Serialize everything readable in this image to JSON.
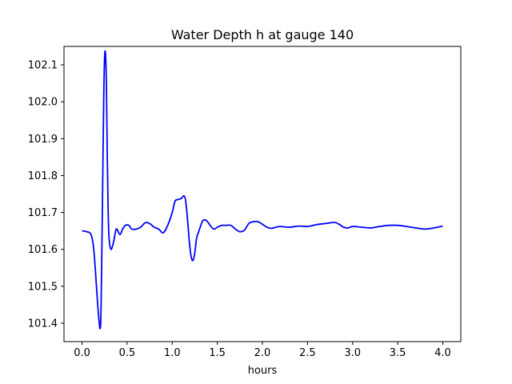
{
  "chart_data": {
    "type": "line",
    "title": "Water Depth h at gauge 140",
    "xlabel": "hours",
    "ylabel": "",
    "xlim": [
      -0.2,
      4.2
    ],
    "ylim": [
      101.35,
      102.15
    ],
    "x_ticks": [
      0.0,
      0.5,
      1.0,
      1.5,
      2.0,
      2.5,
      3.0,
      3.5,
      4.0
    ],
    "x_tick_labels": [
      "0.0",
      "0.5",
      "1.0",
      "1.5",
      "2.0",
      "2.5",
      "3.0",
      "3.5",
      "4.0"
    ],
    "y_ticks": [
      101.4,
      101.5,
      101.6,
      101.7,
      101.8,
      101.9,
      102.0,
      102.1
    ],
    "y_tick_labels": [
      "101.4",
      "101.5",
      "101.6",
      "101.7",
      "101.8",
      "101.9",
      "102.0",
      "102.1"
    ],
    "grid": false,
    "series": [
      {
        "color": "#0000ff",
        "x": [
          0.0,
          0.05,
          0.1,
          0.13,
          0.16,
          0.18,
          0.2,
          0.21,
          0.22,
          0.23,
          0.24,
          0.25,
          0.26,
          0.27,
          0.28,
          0.29,
          0.3,
          0.32,
          0.35,
          0.38,
          0.42,
          0.45,
          0.48,
          0.52,
          0.55,
          0.6,
          0.65,
          0.7,
          0.75,
          0.8,
          0.85,
          0.9,
          0.95,
          1.0,
          1.03,
          1.06,
          1.1,
          1.13,
          1.15,
          1.17,
          1.19,
          1.21,
          1.23,
          1.25,
          1.27,
          1.29,
          1.31,
          1.34,
          1.38,
          1.42,
          1.46,
          1.5,
          1.55,
          1.6,
          1.65,
          1.7,
          1.75,
          1.8,
          1.85,
          1.9,
          1.95,
          2.0,
          2.05,
          2.1,
          2.15,
          2.2,
          2.3,
          2.4,
          2.5,
          2.6,
          2.7,
          2.8,
          2.85,
          2.9,
          2.95,
          3.0,
          3.1,
          3.2,
          3.3,
          3.4,
          3.5,
          3.6,
          3.7,
          3.8,
          3.9,
          4.0
        ],
        "y": [
          101.65,
          101.648,
          101.64,
          101.6,
          101.5,
          101.43,
          101.385,
          101.43,
          101.6,
          101.8,
          102.0,
          102.12,
          102.13,
          102.05,
          101.85,
          101.7,
          101.63,
          101.6,
          101.62,
          101.655,
          101.64,
          101.655,
          101.665,
          101.665,
          101.655,
          101.655,
          101.66,
          101.672,
          101.67,
          101.66,
          101.655,
          101.645,
          101.665,
          101.7,
          101.73,
          101.735,
          101.738,
          101.745,
          101.73,
          101.68,
          101.62,
          101.58,
          101.57,
          101.59,
          101.63,
          101.645,
          101.66,
          101.678,
          101.678,
          101.665,
          101.655,
          101.66,
          101.665,
          101.665,
          101.665,
          101.655,
          101.648,
          101.652,
          101.67,
          101.675,
          101.675,
          101.668,
          101.66,
          101.657,
          101.66,
          101.662,
          101.66,
          101.663,
          101.662,
          101.667,
          101.67,
          101.673,
          101.668,
          101.66,
          101.658,
          101.662,
          101.66,
          101.658,
          101.662,
          101.665,
          101.665,
          101.662,
          101.658,
          101.655,
          101.658,
          101.663
        ]
      }
    ]
  }
}
